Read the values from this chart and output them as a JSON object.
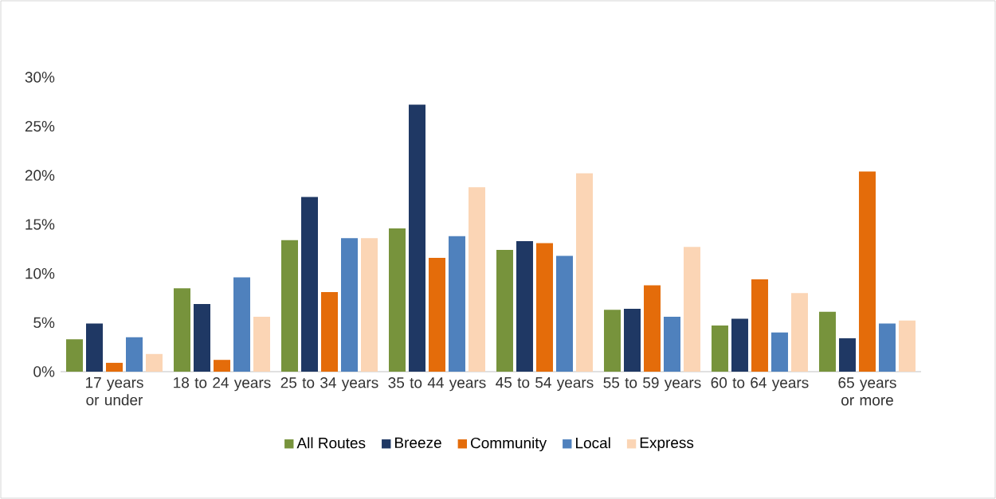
{
  "chart_data": {
    "type": "bar",
    "categories": [
      "17 years or under",
      "18 to 24 years",
      "25 to 34 years",
      "35 to 44 years",
      "45 to 54 years",
      "55 to 59 years",
      "60 to 64 years",
      "65 years or more"
    ],
    "series": [
      {
        "name": "All Routes",
        "color": "#77933c",
        "values": [
          3.3,
          8.5,
          13.4,
          14.6,
          12.4,
          6.3,
          4.7,
          6.1
        ]
      },
      {
        "name": "Breeze",
        "color": "#1f3864",
        "values": [
          4.9,
          6.9,
          17.8,
          27.2,
          13.3,
          6.4,
          5.4,
          3.4
        ]
      },
      {
        "name": "Community",
        "color": "#e46c0a",
        "values": [
          0.9,
          1.2,
          8.1,
          11.6,
          13.1,
          8.8,
          9.4,
          20.4
        ]
      },
      {
        "name": "Local",
        "color": "#4f81bd",
        "values": [
          3.5,
          9.6,
          13.6,
          13.8,
          11.8,
          5.6,
          4.0,
          4.9
        ]
      },
      {
        "name": "Express",
        "color": "#fbd5b5",
        "values": [
          1.8,
          5.6,
          13.6,
          18.8,
          20.2,
          12.7,
          8.0,
          5.2
        ]
      }
    ],
    "ylim": [
      0,
      30
    ],
    "yticks": [
      {
        "value": 0,
        "label": "0%"
      },
      {
        "value": 5,
        "label": "5%"
      },
      {
        "value": 10,
        "label": "10%"
      },
      {
        "value": 15,
        "label": "15%"
      },
      {
        "value": 20,
        "label": "20%"
      },
      {
        "value": 25,
        "label": "25%"
      },
      {
        "value": 30,
        "label": "30%"
      }
    ],
    "legend": "bottom"
  }
}
